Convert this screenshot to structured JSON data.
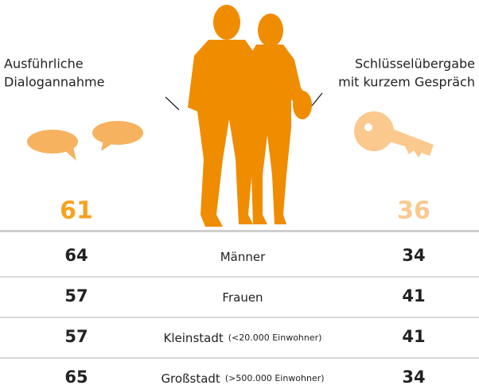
{
  "left_label": {
    "lines": [
      "Ausführliche",
      "Dialogannahme"
    ]
  },
  "right_label": {
    "lines": [
      "Schlüsselübergabe",
      "mit kurzem Gespräch"
    ]
  },
  "totals": {
    "left": 61,
    "right": 36
  },
  "rows": [
    {
      "label": "Männer",
      "left": 64,
      "right": 34
    },
    {
      "label": "Frauen",
      "left": 57,
      "right": 41
    },
    {
      "label": "Kleinstadt",
      "note": "(<20.000 Einwohner)",
      "left": 57,
      "right": 41
    },
    {
      "label": "Großstadt",
      "note": "(>500.000 Einwohner)",
      "left": 65,
      "right": 34
    }
  ]
}
